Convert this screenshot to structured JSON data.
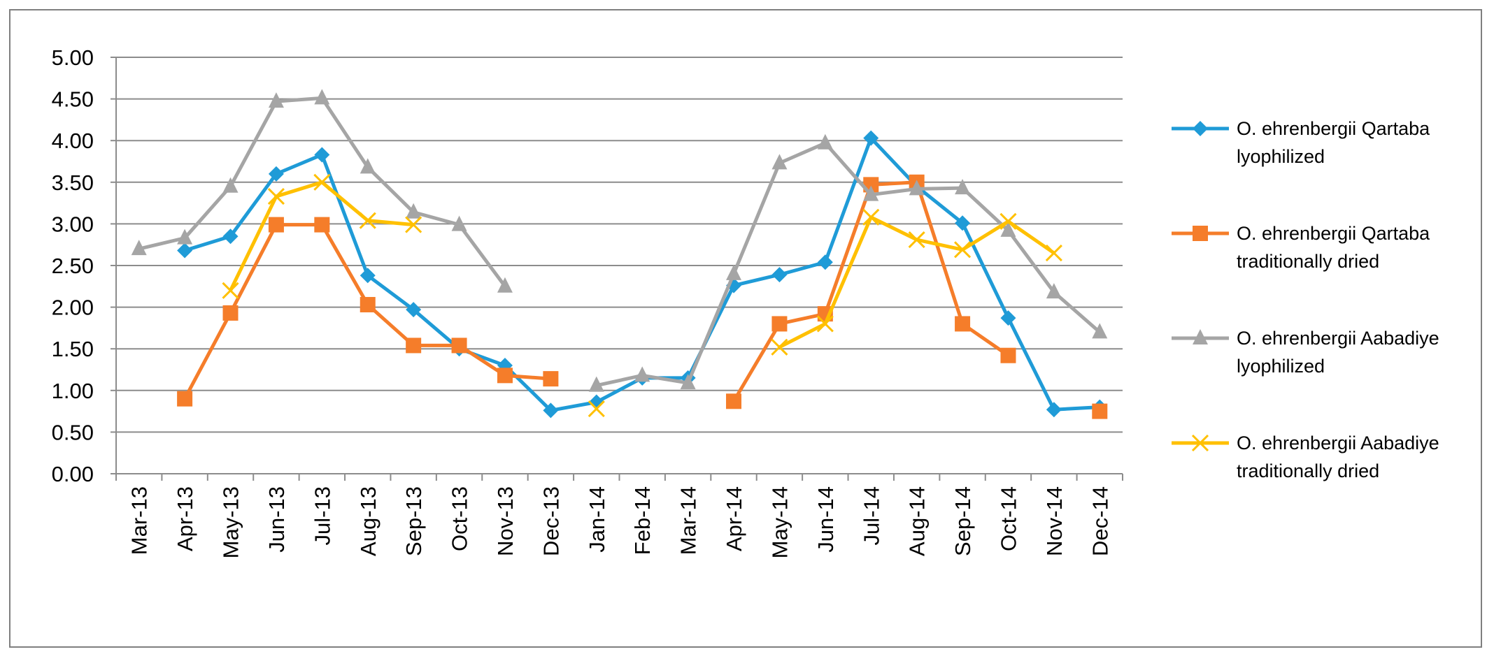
{
  "chart_data": {
    "type": "line",
    "categories": [
      "Mar-13",
      "Apr-13",
      "May-13",
      "Jun-13",
      "Jul-13",
      "Aug-13",
      "Sep-13",
      "Oct-13",
      "Nov-13",
      "Dec-13",
      "Jan-14",
      "Feb-14",
      "Mar-14",
      "Apr-14",
      "May-14",
      "Jun-14",
      "Jul-14",
      "Aug-14",
      "Sep-14",
      "Oct-14",
      "Nov-14",
      "Dec-14"
    ],
    "series": [
      {
        "name": "O. ehrenbergii Qartaba lyophilized",
        "color": "#1f9bd7",
        "marker": "diamond",
        "values": [
          null,
          2.68,
          2.85,
          3.6,
          3.83,
          2.38,
          1.97,
          1.5,
          1.3,
          0.76,
          0.86,
          1.15,
          1.15,
          2.26,
          2.39,
          2.54,
          4.03,
          3.45,
          3.01,
          1.87,
          0.77,
          0.8
        ]
      },
      {
        "name": "O. ehrenbergii Qartaba traditionally dried",
        "color": "#f57d2a",
        "marker": "square",
        "values": [
          null,
          0.9,
          1.93,
          2.99,
          2.99,
          2.03,
          1.54,
          1.54,
          1.18,
          1.14,
          null,
          null,
          null,
          0.87,
          1.8,
          1.92,
          3.47,
          3.5,
          1.8,
          1.42,
          null,
          0.75
        ]
      },
      {
        "name": "O. ehrenbergii Aabadiye lyophilized",
        "color": "#a5a5a5",
        "marker": "triangle",
        "values": [
          2.7,
          2.83,
          3.45,
          4.47,
          4.51,
          3.68,
          3.14,
          2.99,
          2.25,
          null,
          1.06,
          1.18,
          1.09,
          2.4,
          3.73,
          3.97,
          3.35,
          3.42,
          3.43,
          2.92,
          2.18,
          1.7
        ]
      },
      {
        "name": "O. ehrenbergii Aabadiye traditionally dried",
        "color": "#ffc000",
        "marker": "x",
        "values": [
          null,
          null,
          2.2,
          3.33,
          3.5,
          3.04,
          2.99,
          null,
          null,
          null,
          0.78,
          null,
          null,
          null,
          1.52,
          1.8,
          3.08,
          2.81,
          2.69,
          3.03,
          2.65,
          null
        ]
      }
    ],
    "ylim": [
      0,
      5
    ],
    "yticks": [
      {
        "value": 0,
        "label": "0.00"
      },
      {
        "value": 0.5,
        "label": "0.50"
      },
      {
        "value": 1,
        "label": "1.00"
      },
      {
        "value": 1.5,
        "label": "1.50"
      },
      {
        "value": 2,
        "label": "2.00"
      },
      {
        "value": 2.5,
        "label": "2.50"
      },
      {
        "value": 3,
        "label": "3.00"
      },
      {
        "value": 3.5,
        "label": "3.50"
      },
      {
        "value": 4,
        "label": "4.00"
      },
      {
        "value": 4.5,
        "label": "4.50"
      },
      {
        "value": 5,
        "label": "5.00"
      }
    ],
    "grid": true,
    "legend": "right"
  }
}
